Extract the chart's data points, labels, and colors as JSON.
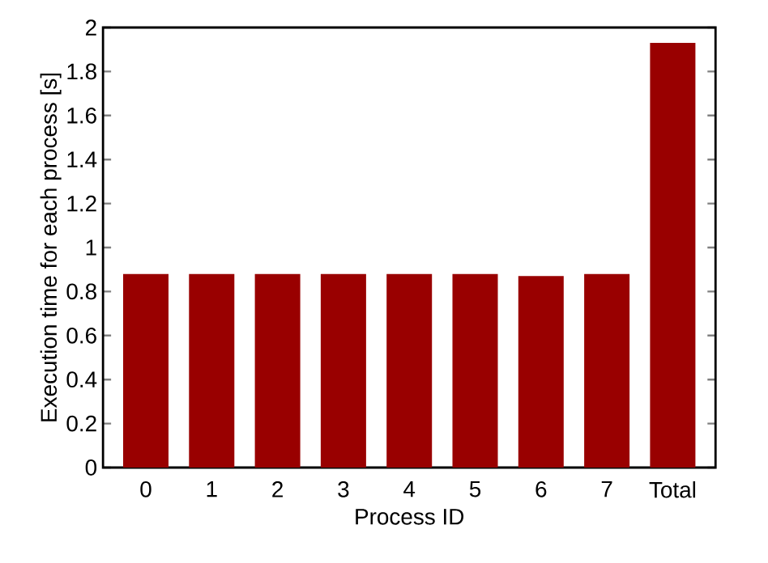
{
  "chart_data": {
    "type": "bar",
    "xlabel": "Process ID",
    "ylabel": "Execution time for each process [s]",
    "categories": [
      "0",
      "1",
      "2",
      "3",
      "4",
      "5",
      "6",
      "7",
      "Total"
    ],
    "values": [
      0.88,
      0.88,
      0.88,
      0.88,
      0.88,
      0.88,
      0.87,
      0.88,
      1.93
    ],
    "color": "#990000",
    "ylim": [
      0,
      2
    ],
    "yticks": [
      0,
      0.2,
      0.4,
      0.6,
      0.8,
      1,
      1.2,
      1.4,
      1.6,
      1.8,
      2
    ]
  }
}
